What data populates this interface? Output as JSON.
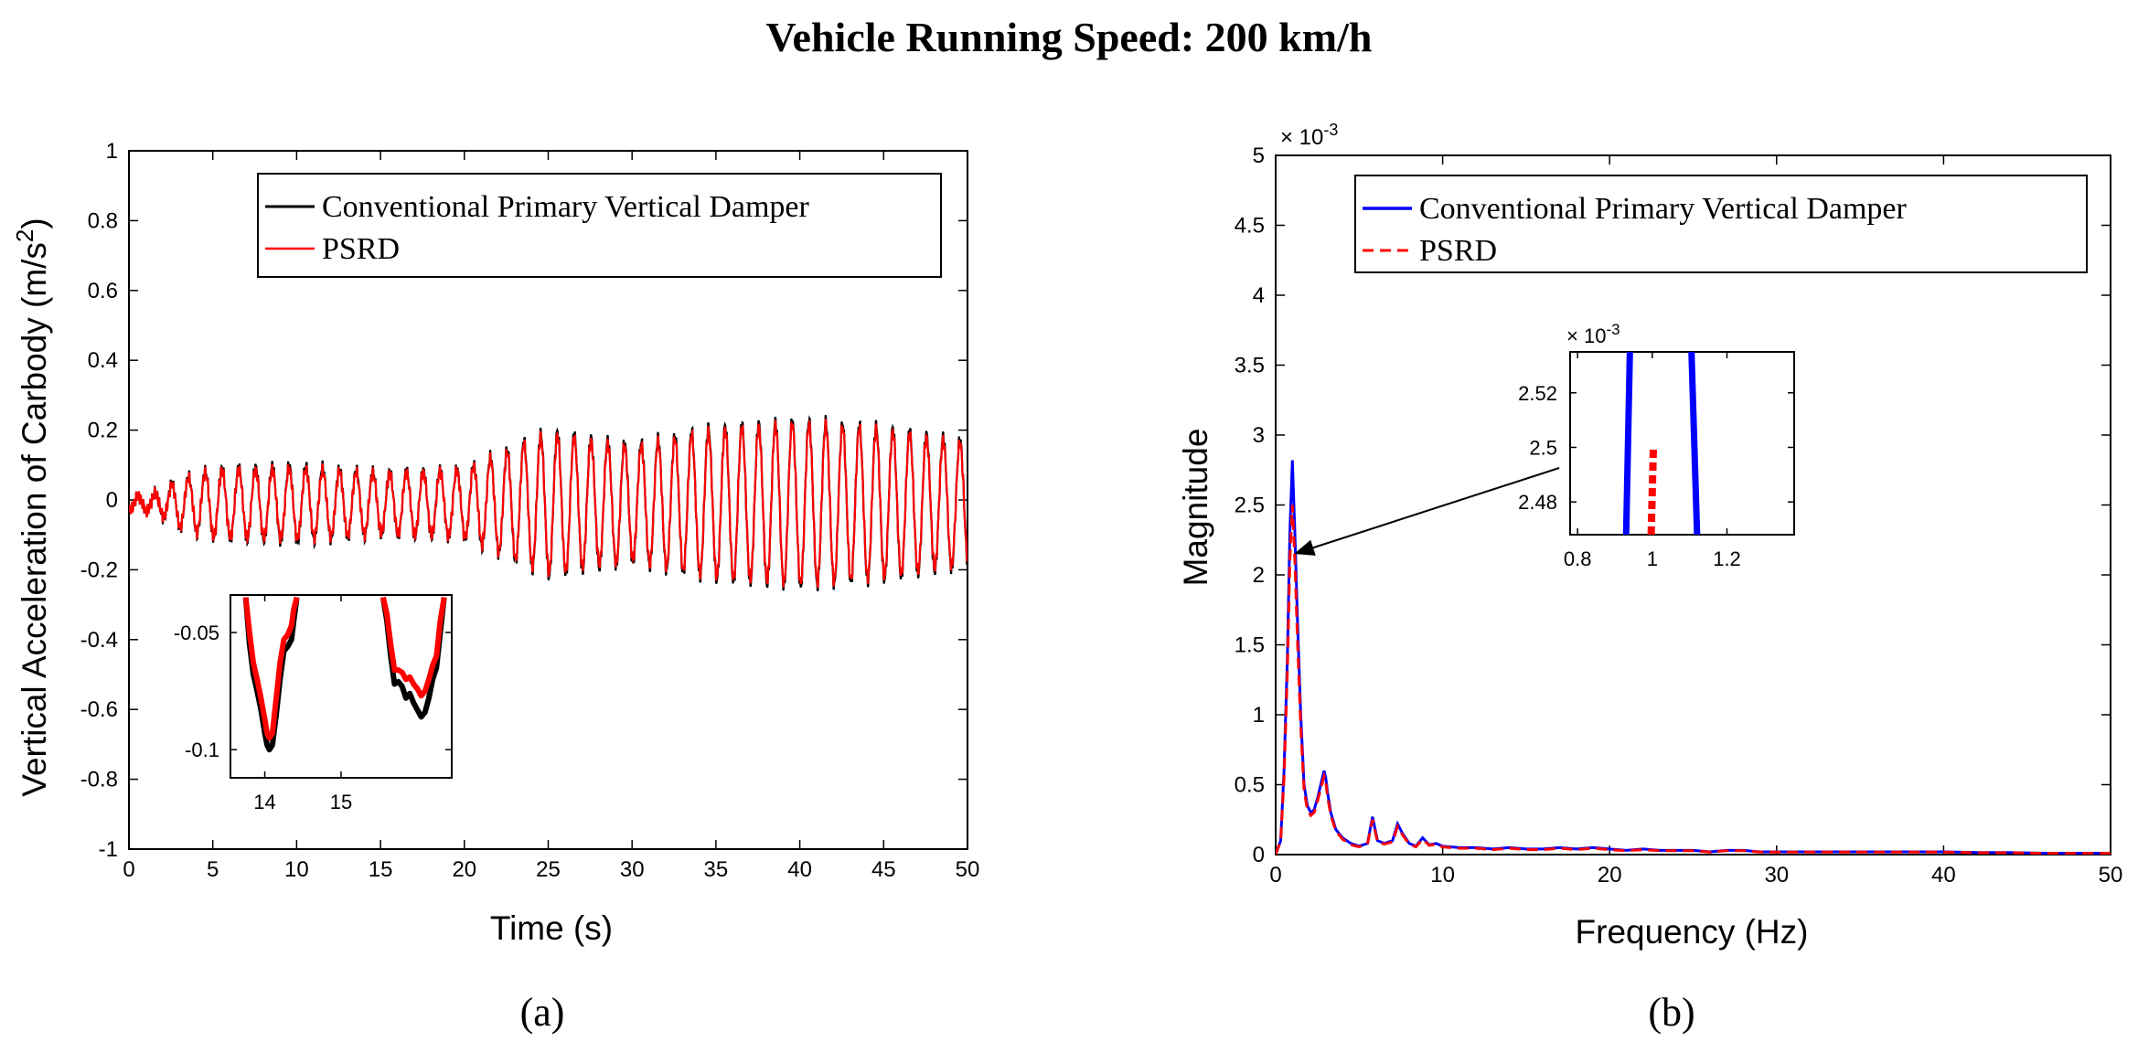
{
  "figure": {
    "title": "Vehicle Running Speed: 200 km/h",
    "panel_a_label": "(a)",
    "panel_b_label": "(b)",
    "colors": {
      "black": "#000000",
      "red": "#ff0000",
      "blue": "#0000ff"
    }
  },
  "chart_data": [
    {
      "type": "line",
      "panel": "a",
      "xlabel": "Time (s)",
      "ylabel": "Vertical Acceleration of Carbody (m/s²)",
      "ylabel_main": "Vertical Acceleration of Carbody (m/s",
      "ylabel_sup": "2",
      "ylabel_tail": ")",
      "xlim": [
        0,
        50
      ],
      "ylim": [
        -1,
        1
      ],
      "xticks": [
        0,
        5,
        10,
        15,
        20,
        25,
        30,
        35,
        40,
        45,
        50
      ],
      "xtick_labels": [
        "0",
        "5",
        "10",
        "15",
        "20",
        "25",
        "30",
        "35",
        "40",
        "45",
        "50"
      ],
      "yticks": [
        -1,
        -0.8,
        -0.6,
        -0.4,
        -0.2,
        0,
        0.2,
        0.4,
        0.6,
        0.8,
        1
      ],
      "ytick_labels": [
        "-1",
        "-0.8",
        "-0.6",
        "-0.4",
        "-0.2",
        "0",
        "0.2",
        "0.4",
        "0.6",
        "0.8",
        "1"
      ],
      "legend": {
        "placement": "top-right",
        "entries": [
          "Conventional Primary Vertical Damper",
          "PSRD"
        ]
      },
      "series": [
        {
          "name": "Conventional Primary Vertical Damper",
          "color": "#000000",
          "style": "solid"
        },
        {
          "name": "PSRD",
          "color": "#ff0000",
          "style": "solid"
        }
      ],
      "oscillation": {
        "frequency_hz": 1.0,
        "envelope_time": [
          0,
          1,
          2,
          3,
          5,
          10,
          15,
          20,
          25,
          30,
          35,
          40,
          45,
          50
        ],
        "envelope_conventional": [
          0.02,
          0.02,
          0.04,
          0.07,
          0.1,
          0.11,
          0.09,
          0.1,
          0.21,
          0.17,
          0.22,
          0.24,
          0.22,
          0.18
        ],
        "envelope_psrd": [
          0.02,
          0.02,
          0.035,
          0.065,
          0.095,
          0.1,
          0.085,
          0.095,
          0.2,
          0.16,
          0.21,
          0.23,
          0.21,
          0.17
        ]
      },
      "inset": {
        "xlim": [
          13.55,
          16.45
        ],
        "ylim": [
          -0.112,
          -0.034
        ],
        "xticks": [
          14,
          15
        ],
        "xtick_labels": [
          "14",
          "15"
        ],
        "yticks": [
          -0.05,
          -0.1
        ],
        "ytick_labels": [
          "-0.05",
          "-0.1"
        ],
        "conventional": {
          "x": [
            13.75,
            13.8,
            13.85,
            13.9,
            13.95,
            14.0,
            14.03,
            14.06,
            14.1,
            14.15,
            14.2,
            14.25,
            14.3,
            14.35,
            14.38,
            14.42
          ],
          "y": [
            -0.035,
            -0.055,
            -0.068,
            -0.075,
            -0.083,
            -0.093,
            -0.098,
            -0.1,
            -0.098,
            -0.085,
            -0.07,
            -0.058,
            -0.056,
            -0.053,
            -0.045,
            -0.035
          ]
        },
        "psrd": {
          "x": [
            13.75,
            13.8,
            13.85,
            13.9,
            13.95,
            14.0,
            14.03,
            14.06,
            14.1,
            14.15,
            14.2,
            14.25,
            14.3,
            14.35,
            14.38,
            14.42
          ],
          "y": [
            -0.035,
            -0.05,
            -0.063,
            -0.07,
            -0.078,
            -0.087,
            -0.093,
            -0.095,
            -0.093,
            -0.078,
            -0.063,
            -0.053,
            -0.051,
            -0.047,
            -0.04,
            -0.035
          ]
        },
        "conventional_2": {
          "x": [
            15.55,
            15.6,
            15.65,
            15.7,
            15.75,
            15.8,
            15.85,
            15.9,
            15.95,
            16.0,
            16.05,
            16.1,
            16.15,
            16.2,
            16.25,
            16.3,
            16.35
          ],
          "y": [
            -0.035,
            -0.045,
            -0.06,
            -0.072,
            -0.071,
            -0.073,
            -0.078,
            -0.076,
            -0.08,
            -0.083,
            -0.086,
            -0.084,
            -0.078,
            -0.07,
            -0.065,
            -0.05,
            -0.035
          ]
        },
        "psrd_2": {
          "x": [
            15.55,
            15.6,
            15.65,
            15.7,
            15.75,
            15.8,
            15.85,
            15.9,
            15.95,
            16.0,
            16.05,
            16.1,
            16.15,
            16.2,
            16.25,
            16.3,
            16.35
          ],
          "y": [
            -0.035,
            -0.042,
            -0.055,
            -0.066,
            -0.066,
            -0.067,
            -0.07,
            -0.069,
            -0.072,
            -0.074,
            -0.077,
            -0.075,
            -0.07,
            -0.064,
            -0.06,
            -0.045,
            -0.035
          ]
        }
      }
    },
    {
      "type": "line",
      "panel": "b",
      "xlabel": "Frequency (Hz)",
      "ylabel": "Magnitude",
      "y_multiplier": "×10⁻³",
      "y_multiplier_base": "× 10",
      "y_multiplier_exp": "-3",
      "xlim": [
        0,
        50
      ],
      "ylim": [
        0,
        5
      ],
      "xticks": [
        0,
        10,
        20,
        30,
        40,
        50
      ],
      "xtick_labels": [
        "0",
        "10",
        "20",
        "30",
        "40",
        "50"
      ],
      "yticks": [
        0,
        0.5,
        1,
        1.5,
        2,
        2.5,
        3,
        3.5,
        4,
        4.5,
        5
      ],
      "ytick_labels": [
        "0",
        "0.5",
        "1",
        "1.5",
        "2",
        "2.5",
        "3",
        "3.5",
        "4",
        "4.5",
        "5"
      ],
      "legend": {
        "placement": "top-right",
        "entries": [
          "Conventional Primary Vertical Damper",
          "PSRD"
        ]
      },
      "series": [
        {
          "name": "Conventional Primary Vertical Damper",
          "color": "#0000ff",
          "style": "solid",
          "x": [
            0,
            0.3,
            0.5,
            0.7,
            0.85,
            1.0,
            1.15,
            1.3,
            1.5,
            1.7,
            1.9,
            2.1,
            2.3,
            2.5,
            2.7,
            2.9,
            3.0,
            3.1,
            3.3,
            3.6,
            4.0,
            4.5,
            5.0,
            5.5,
            5.8,
            6.1,
            6.5,
            7.0,
            7.3,
            7.6,
            8.0,
            8.4,
            8.8,
            9.2,
            9.6,
            10.0,
            11,
            12,
            13,
            14,
            15,
            16,
            17,
            18,
            19,
            20,
            21,
            22,
            23,
            24,
            25,
            26,
            27,
            28,
            29,
            30,
            32,
            34,
            36,
            38,
            40,
            42,
            44,
            46,
            48,
            50
          ],
          "y": [
            0.0,
            0.1,
            0.6,
            1.4,
            2.3,
            2.82,
            2.3,
            1.7,
            1.0,
            0.5,
            0.35,
            0.3,
            0.32,
            0.4,
            0.5,
            0.6,
            0.55,
            0.45,
            0.3,
            0.18,
            0.12,
            0.08,
            0.06,
            0.08,
            0.27,
            0.1,
            0.08,
            0.1,
            0.22,
            0.15,
            0.08,
            0.06,
            0.12,
            0.07,
            0.08,
            0.06,
            0.05,
            0.05,
            0.04,
            0.05,
            0.04,
            0.04,
            0.05,
            0.04,
            0.05,
            0.04,
            0.03,
            0.04,
            0.03,
            0.03,
            0.03,
            0.02,
            0.03,
            0.03,
            0.02,
            0.02,
            0.02,
            0.02,
            0.02,
            0.02,
            0.02,
            0.015,
            0.015,
            0.01,
            0.01,
            0.01
          ]
        },
        {
          "name": "PSRD",
          "color": "#ff0000",
          "style": "dashed",
          "x": [
            0,
            0.3,
            0.5,
            0.7,
            0.85,
            1.0,
            1.15,
            1.3,
            1.5,
            1.7,
            1.9,
            2.1,
            2.3,
            2.5,
            2.7,
            2.9,
            3.0,
            3.1,
            3.3,
            3.6,
            4.0,
            4.5,
            5.0,
            5.5,
            5.8,
            6.1,
            6.5,
            7.0,
            7.3,
            7.6,
            8.0,
            8.4,
            8.8,
            9.2,
            9.6,
            10.0,
            11,
            12,
            13,
            14,
            15,
            16,
            17,
            18,
            19,
            20,
            21,
            22,
            23,
            24,
            25,
            26,
            27,
            28,
            29,
            30,
            32,
            34,
            36,
            38,
            40,
            42,
            44,
            46,
            48,
            50
          ],
          "y": [
            0.0,
            0.1,
            0.55,
            1.3,
            2.1,
            2.5,
            2.1,
            1.55,
            0.92,
            0.46,
            0.32,
            0.28,
            0.3,
            0.38,
            0.47,
            0.56,
            0.52,
            0.42,
            0.28,
            0.17,
            0.11,
            0.07,
            0.055,
            0.075,
            0.25,
            0.09,
            0.075,
            0.09,
            0.2,
            0.14,
            0.075,
            0.055,
            0.11,
            0.065,
            0.075,
            0.055,
            0.045,
            0.045,
            0.035,
            0.045,
            0.035,
            0.035,
            0.045,
            0.035,
            0.045,
            0.035,
            0.028,
            0.035,
            0.028,
            0.028,
            0.028,
            0.018,
            0.028,
            0.028,
            0.018,
            0.018,
            0.018,
            0.018,
            0.018,
            0.018,
            0.018,
            0.013,
            0.013,
            0.009,
            0.009,
            0.009
          ]
        }
      ],
      "inset": {
        "xlim": [
          0.78,
          1.38
        ],
        "ylim": [
          2.468,
          2.535
        ],
        "xticks": [
          0.8,
          1.0,
          1.2
        ],
        "xtick_labels": [
          "0.8",
          "1",
          "1.2"
        ],
        "yticks": [
          2.48,
          2.5,
          2.52
        ],
        "ytick_labels": [
          "2.48",
          "2.5",
          "2.52"
        ],
        "y_multiplier_base": "× 10",
        "y_multiplier_exp": "-3",
        "conventional_left": {
          "x": [
            0.93,
            0.94
          ],
          "y": [
            2.468,
            2.535
          ]
        },
        "conventional_right": {
          "x": [
            1.105,
            1.12
          ],
          "y": [
            2.535,
            2.468
          ]
        },
        "psrd": {
          "x": [
            0.997,
            1.003
          ],
          "y": [
            2.468,
            2.5
          ]
        },
        "arrow": {
          "from": [
            1.0,
            2.8
          ],
          "to": [
            1.1,
            2.15
          ]
        }
      }
    }
  ]
}
